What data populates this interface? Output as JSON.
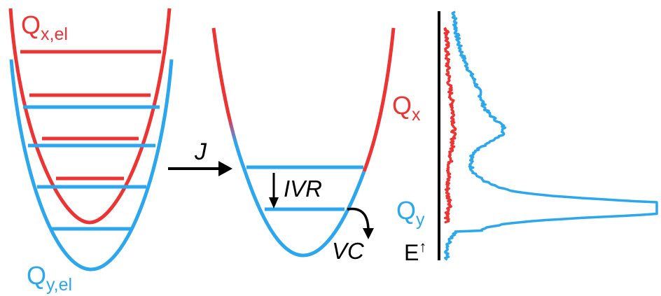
{
  "colors": {
    "red": "#ee3333",
    "blue": "#2aa7ee",
    "black": "#000000"
  },
  "left_panel": {
    "qx_label": {
      "main": "Q",
      "sub": "x,el"
    },
    "qy_label": {
      "main": "Q",
      "sub": "y,el"
    }
  },
  "coupling": {
    "label": "J"
  },
  "middle_panel": {
    "qx_label": {
      "main": "Q",
      "sub": "x"
    },
    "qy_label": {
      "main": "Q",
      "sub": "y"
    },
    "ivr_label": "IVR",
    "vc_label": "VC"
  },
  "spectrum": {
    "energy_axis_label": "E",
    "energy_arrow": "↑"
  }
}
